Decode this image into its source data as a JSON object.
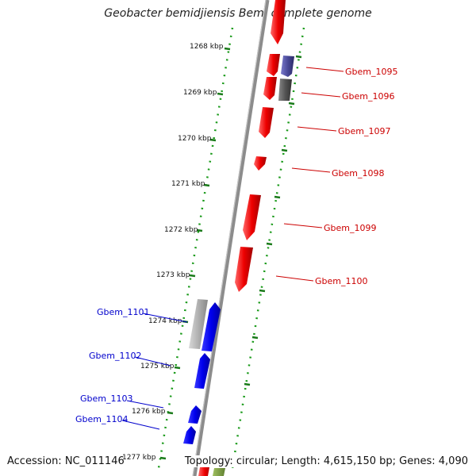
{
  "title": "Geobacter bemidjiensis Bem, complete genome",
  "accession": "Accession: NC_011146",
  "summary": "Topology: circular; Length: 4,615,150 bp; Genes: 4,090",
  "ticks": [
    "1268 kbp",
    "1269 kbp",
    "1270 kbp",
    "1271 kbp",
    "1272 kbp",
    "1273 kbp",
    "1274 kbp",
    "1275 kbp",
    "1276 kbp",
    "1277 kbp"
  ],
  "genes_forward": [
    {
      "label": "Gbem_1095",
      "color": "#4a4a99"
    },
    {
      "label": "Gbem_1096",
      "color": "#555555"
    },
    {
      "label": "Gbem_1097",
      "color": "#ee0000"
    },
    {
      "label": "Gbem_1098",
      "color": "#ee0000"
    },
    {
      "label": "Gbem_1099",
      "color": "#ee0000"
    },
    {
      "label": "Gbem_1100",
      "color": "#ee0000"
    }
  ],
  "genes_reverse": [
    {
      "label": "Gbem_1101",
      "color": "#aaaaaa"
    },
    {
      "label": "Gbem_1102",
      "color": "#0000ee"
    },
    {
      "label": "Gbem_1103",
      "color": "#0000ee"
    },
    {
      "label": "Gbem_1104",
      "color": "#0000ee"
    }
  ]
}
